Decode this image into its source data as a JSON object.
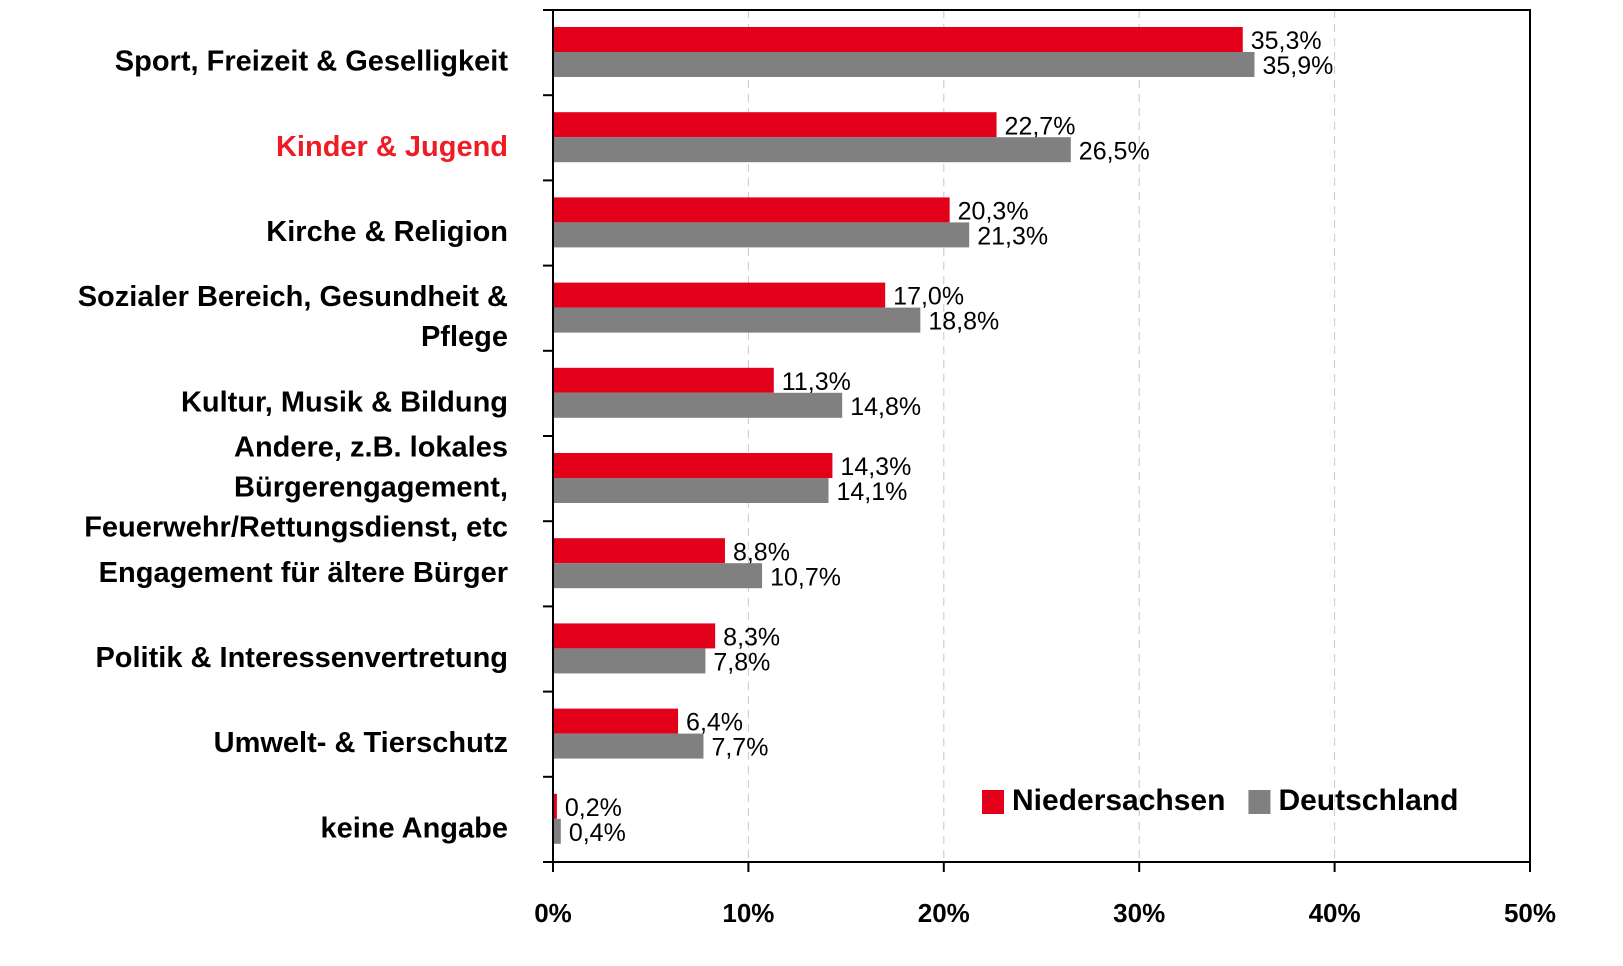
{
  "chart_data": {
    "type": "bar",
    "orientation": "horizontal",
    "categories": [
      "Sport, Freizeit & Geselligkeit",
      "Kinder & Jugend",
      "Kirche & Religion",
      "Sozialer Bereich, Gesundheit &\nPflege",
      "Kultur, Musik & Bildung",
      "Andere, z.B. lokales\nBürgerengagement,\nFeuerwehr/Rettungsdienst, etc",
      "Engagement für ältere Bürger",
      "Politik & Interessenvertretung",
      "Umwelt- & Tierschutz",
      "keine Angabe"
    ],
    "category_label_colors": [
      "#000000",
      "#ee1c25",
      "#000000",
      "#000000",
      "#000000",
      "#000000",
      "#000000",
      "#000000",
      "#000000",
      "#000000"
    ],
    "series": [
      {
        "name": "Niedersachsen",
        "color": "#e2001a",
        "values": [
          35.3,
          22.7,
          20.3,
          17.0,
          11.3,
          14.3,
          8.8,
          8.3,
          6.4,
          0.2
        ],
        "value_labels": [
          "35,3%",
          "22,7%",
          "20,3%",
          "17,0%",
          "11,3%",
          "14,3%",
          "8,8%",
          "8,3%",
          "6,4%",
          "0,2%"
        ]
      },
      {
        "name": "Deutschland",
        "color": "#808080",
        "values": [
          35.9,
          26.5,
          21.3,
          18.8,
          14.8,
          14.1,
          10.7,
          7.8,
          7.7,
          0.4
        ],
        "value_labels": [
          "35,9%",
          "26,5%",
          "21,3%",
          "18,8%",
          "14,8%",
          "14,1%",
          "10,7%",
          "7,8%",
          "7,7%",
          "0,4%"
        ]
      }
    ],
    "xlim": [
      0,
      50
    ],
    "xticks": [
      {
        "value": 0,
        "label": "0%"
      },
      {
        "value": 10,
        "label": "10%"
      },
      {
        "value": 20,
        "label": "20%"
      },
      {
        "value": 30,
        "label": "30%"
      },
      {
        "value": 40,
        "label": "40%"
      },
      {
        "value": 50,
        "label": "50%"
      }
    ],
    "grid": true,
    "legend": "lower right"
  }
}
